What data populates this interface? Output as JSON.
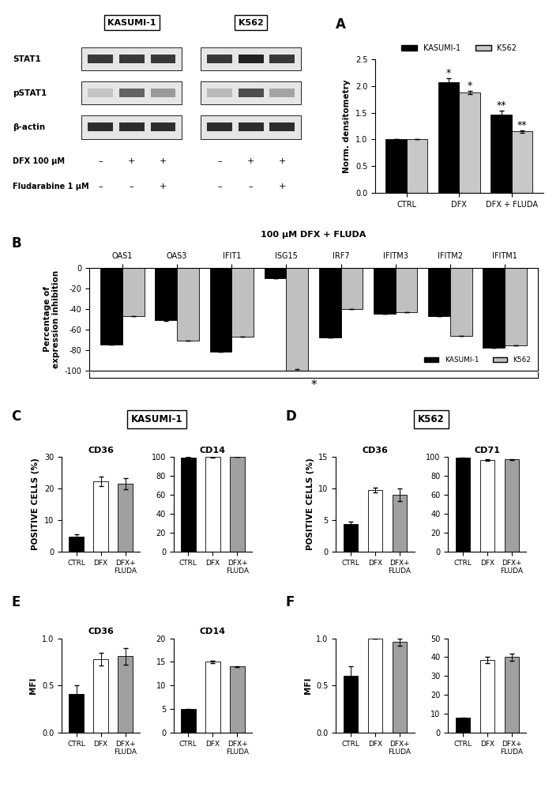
{
  "panel_labels": [
    "A",
    "B",
    "C",
    "D",
    "E",
    "F"
  ],
  "section_titles": [
    "KASUMI-1",
    "K562"
  ],
  "blot": {
    "groups": [
      "KASUMI-1",
      "K562"
    ],
    "rows": [
      "STAT1",
      "pSTAT1",
      "β-actin"
    ],
    "bands": [
      [
        [
          0.8,
          0.8,
          0.8
        ],
        [
          0.15,
          0.6,
          0.35
        ],
        [
          0.85,
          0.85,
          0.85
        ]
      ],
      [
        [
          0.8,
          0.9,
          0.8
        ],
        [
          0.2,
          0.7,
          0.3
        ],
        [
          0.85,
          0.85,
          0.85
        ]
      ]
    ],
    "treatments": [
      {
        "label": "DFX 100 µM",
        "signs": [
          "–",
          "+",
          "+"
        ]
      },
      {
        "label": "Fludarabine 1 µM",
        "signs": [
          "–",
          "–",
          "+"
        ]
      }
    ]
  },
  "chart_data": [
    {
      "type": "bar",
      "categories": [
        "CTRL",
        "DFX",
        "DFX + FLUDA"
      ],
      "series": [
        {
          "name": "KASUMI-1",
          "color": "#000000",
          "values": [
            1.0,
            2.07,
            1.47
          ],
          "errors": [
            0.0,
            0.08,
            0.07
          ]
        },
        {
          "name": "K562",
          "color": "#c8c8c8",
          "values": [
            1.0,
            1.88,
            1.15
          ],
          "errors": [
            0.0,
            0.03,
            0.02
          ]
        }
      ],
      "ylabel": "Norm. densitometry",
      "ylim": [
        0,
        2.5
      ],
      "yticks": [
        {
          "value": 0,
          "label": "0.0"
        },
        {
          "value": 0.5,
          "label": "0.5"
        },
        {
          "value": 1.0,
          "label": "1.0"
        },
        {
          "value": 1.5,
          "label": "1.5"
        },
        {
          "value": 2.0,
          "label": "2.0"
        },
        {
          "value": 2.5,
          "label": "2.5"
        }
      ],
      "legend": "upper center",
      "annotations": [
        {
          "text": "*",
          "category": "DFX",
          "series": "KASUMI-1"
        },
        {
          "text": "*",
          "category": "DFX",
          "series": "K562"
        },
        {
          "text": "**",
          "category": "DFX + FLUDA",
          "series": "KASUMI-1"
        },
        {
          "text": "**",
          "category": "DFX + FLUDA",
          "series": "K562"
        }
      ]
    },
    {
      "type": "bar",
      "title": "100 µM DFX + FLUDA",
      "categories": [
        "OAS1",
        "OAS3",
        "IFIT1",
        "ISG15",
        "IRF7",
        "IFITM3",
        "IFITM2",
        "IFITM1"
      ],
      "series": [
        {
          "name": "KASUMI-1",
          "color": "#000000",
          "values": [
            -75,
            -51,
            -82,
            -10,
            -68,
            -45,
            -47,
            -78
          ],
          "errors": [
            0,
            1,
            0,
            0,
            0,
            0,
            0,
            0
          ]
        },
        {
          "name": "K562",
          "color": "#c0c0c0",
          "values": [
            -47,
            -71,
            -67,
            -100,
            -40,
            -43,
            -66,
            -76
          ],
          "errors": [
            0,
            0,
            0,
            1,
            0,
            0,
            0,
            0
          ]
        }
      ],
      "ylabel": "Percentage of\nexpression inhibition",
      "ylim": [
        -100,
        0
      ],
      "yticks": [
        -100,
        -80,
        -60,
        -40,
        -20,
        0
      ],
      "legend": "lower right",
      "annotations": [
        {
          "text": "*"
        }
      ]
    },
    {
      "type": "bar",
      "title": "CD36",
      "categories": [
        "CTRL",
        "DFX",
        "DFX+\nFLUDA"
      ],
      "values": [
        4.7,
        22.3,
        21.5
      ],
      "errors": [
        0.7,
        1.5,
        1.7
      ],
      "colors": [
        "#000000",
        "#ffffff",
        "#a0a0a0"
      ],
      "ylabel": "POSITIVE CELLS (%)",
      "ylim": [
        0,
        30
      ],
      "yticks": [
        0,
        10,
        20,
        30
      ]
    },
    {
      "type": "bar",
      "title": "CD14",
      "categories": [
        "CTRL",
        "DFX",
        "DFX+\nFLUDA"
      ],
      "values": [
        99.5,
        99.8,
        100
      ],
      "errors": [
        0.3,
        0.2,
        0.1
      ],
      "colors": [
        "#000000",
        "#ffffff",
        "#a0a0a0"
      ],
      "ylim": [
        0,
        100
      ],
      "yticks": [
        0,
        20,
        40,
        60,
        80,
        100
      ]
    },
    {
      "type": "bar",
      "title": "CD36",
      "categories": [
        "CTRL",
        "DFX",
        "DFX+\nFLUDA"
      ],
      "values": [
        4.4,
        9.8,
        9.0
      ],
      "errors": [
        0.3,
        0.4,
        1.0
      ],
      "colors": [
        "#000000",
        "#ffffff",
        "#a0a0a0"
      ],
      "ylabel": "POSITIVE CELLS (%)",
      "ylim": [
        0,
        15
      ],
      "yticks": [
        0,
        5,
        10,
        15
      ]
    },
    {
      "type": "bar",
      "title": "CD71",
      "categories": [
        "CTRL",
        "DFX",
        "DFX+\nFLUDA"
      ],
      "values": [
        99,
        97,
        97.5
      ],
      "errors": [
        0.3,
        0.6,
        0.5
      ],
      "colors": [
        "#000000",
        "#ffffff",
        "#a0a0a0"
      ],
      "ylim": [
        0,
        100
      ],
      "yticks": [
        0,
        20,
        40,
        60,
        80,
        100
      ]
    },
    {
      "type": "bar",
      "title": "CD36",
      "categories": [
        "CTRL",
        "DFX",
        "DFX+\nFLUDA"
      ],
      "values": [
        0.41,
        0.78,
        0.81
      ],
      "errors": [
        0.09,
        0.07,
        0.09
      ],
      "colors": [
        "#000000",
        "#ffffff",
        "#a0a0a0"
      ],
      "ylabel": "MFI",
      "ylim": [
        0,
        1.0
      ],
      "yticks": [
        {
          "value": 0,
          "label": "0.0"
        },
        {
          "value": 0.5,
          "label": "0.5"
        },
        {
          "value": 1.0,
          "label": "1.0"
        }
      ]
    },
    {
      "type": "bar",
      "title": "CD14",
      "categories": [
        "CTRL",
        "DFX",
        "DFX+\nFLUDA"
      ],
      "values": [
        5,
        15,
        14
      ],
      "errors": [
        0.1,
        0.2,
        0.1
      ],
      "colors": [
        "#000000",
        "#ffffff",
        "#a0a0a0"
      ],
      "ylim": [
        0,
        20
      ],
      "yticks": [
        0,
        5,
        10,
        15,
        20
      ]
    },
    {
      "type": "bar",
      "categories": [
        "CTRL",
        "DFX",
        "DFX+\nFLUDA"
      ],
      "values": [
        0.6,
        1.0,
        0.96
      ],
      "errors": [
        0.1,
        0.0,
        0.04
      ],
      "colors": [
        "#000000",
        "#ffffff",
        "#a0a0a0"
      ],
      "ylabel": "MFI",
      "ylim": [
        0,
        1.0
      ],
      "yticks": [
        {
          "value": 0,
          "label": "0.0"
        },
        {
          "value": 0.5,
          "label": "0.5"
        },
        {
          "value": 1.0,
          "label": "1.0"
        }
      ]
    },
    {
      "type": "bar",
      "categories": [
        "CTRL",
        "DFX",
        "DFX+\nFLUDA"
      ],
      "values": [
        8,
        38.5,
        40
      ],
      "errors": [
        0.2,
        1.5,
        1.8
      ],
      "colors": [
        "#000000",
        "#ffffff",
        "#a0a0a0"
      ],
      "ylim": [
        0,
        50
      ],
      "yticks": [
        0,
        10,
        20,
        30,
        40,
        50
      ]
    }
  ]
}
